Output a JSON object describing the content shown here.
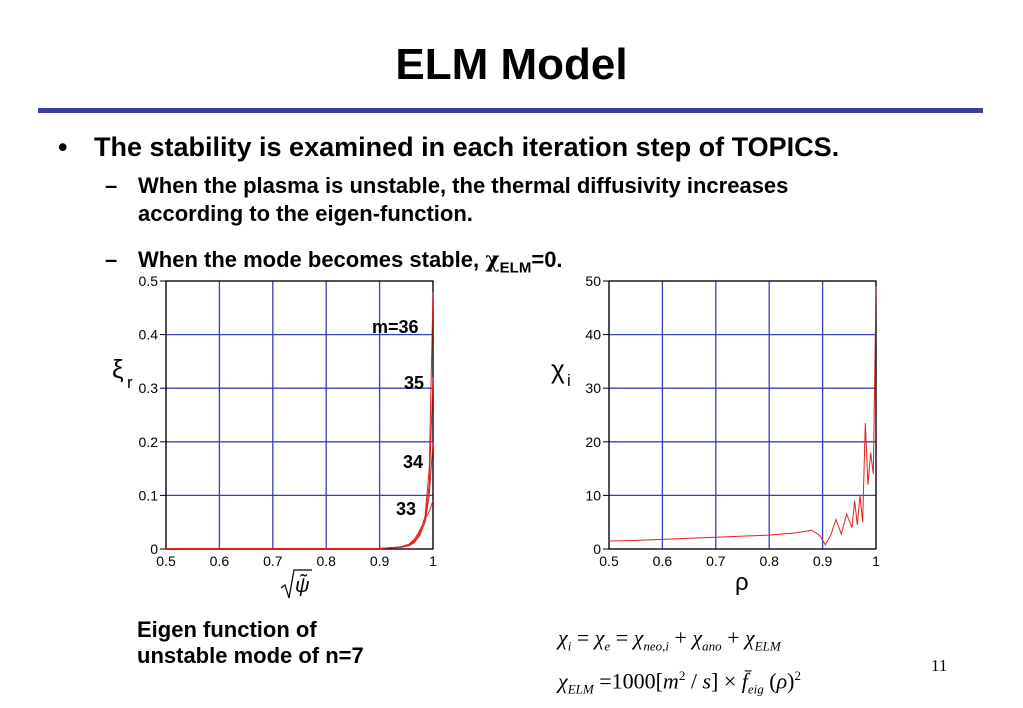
{
  "slide": {
    "title": "ELM Model",
    "bullet": "The stability is examined in each iteration step of TOPICS.",
    "sub1_line1": "When the plasma is unstable, the thermal diffusivity increases",
    "sub1_line2": "according to the eigen-function.",
    "sub2_text": "When the mode becomes stable, ",
    "sub2_chi": "χ",
    "sub2_sub": "ELM",
    "sub2_tail": "=0.",
    "caption_line1": "Eigen function of",
    "caption_line2": "unstable mode of n=7",
    "page_number": "11",
    "formula1": "χi = χe = χneo,i + χano + χELM",
    "formula2": "χELM = 1000[m2 / s] × f̄eig (ρ)2",
    "bullet_symbol": "•",
    "dash_symbol": "–"
  },
  "colors": {
    "rule": "#3b3f99",
    "grid": "#3b3fb5",
    "curve": "#e02020"
  },
  "chart_data": [
    {
      "type": "line",
      "title": "",
      "xlabel": "√ψ̃",
      "ylabel": "ξr",
      "xlim": [
        0.5,
        1
      ],
      "ylim": [
        0,
        0.5
      ],
      "x_ticks": [
        "0.5",
        "0.6",
        "0.7",
        "0.8",
        "0.9",
        "1"
      ],
      "y_ticks": [
        "0",
        "0.1",
        "0.2",
        "0.3",
        "0.4",
        "0.5"
      ],
      "grid": true,
      "annotations": [
        "m=36",
        "35",
        "34",
        "33"
      ],
      "series": [
        {
          "x": [
            0.5,
            0.9,
            0.94,
            0.955,
            0.965,
            0.975,
            0.985,
            0.993,
            1.0
          ],
          "values": [
            0.001,
            0.001,
            0.003,
            0.006,
            0.012,
            0.025,
            0.05,
            0.12,
            0.32
          ]
        },
        {
          "x": [
            0.5,
            0.9,
            0.94,
            0.955,
            0.965,
            0.975,
            0.985,
            0.993,
            1.0
          ],
          "values": [
            0.001,
            0.001,
            0.003,
            0.007,
            0.014,
            0.03,
            0.06,
            0.15,
            0.48
          ]
        },
        {
          "x": [
            0.5,
            0.9,
            0.94,
            0.955,
            0.965,
            0.975,
            0.985,
            0.993,
            1.0
          ],
          "values": [
            0.001,
            0.001,
            0.004,
            0.008,
            0.015,
            0.028,
            0.05,
            0.1,
            0.2
          ]
        },
        {
          "x": [
            0.5,
            0.9,
            0.94,
            0.955,
            0.965,
            0.975,
            0.985,
            0.993,
            1.0
          ],
          "values": [
            0.001,
            0.001,
            0.004,
            0.009,
            0.018,
            0.034,
            0.055,
            0.07,
            0.09
          ]
        }
      ]
    },
    {
      "type": "line",
      "title": "",
      "xlabel": "ρ",
      "ylabel": "χi",
      "xlim": [
        0.5,
        1
      ],
      "ylim": [
        0,
        50
      ],
      "x_ticks": [
        "0.5",
        "0.6",
        "0.7",
        "0.8",
        "0.9",
        "1"
      ],
      "y_ticks": [
        "0",
        "10",
        "20",
        "30",
        "40",
        "50"
      ],
      "grid": true,
      "series": [
        {
          "x": [
            0.5,
            0.55,
            0.6,
            0.65,
            0.7,
            0.75,
            0.8,
            0.85,
            0.88,
            0.895,
            0.905,
            0.915,
            0.925,
            0.935,
            0.945,
            0.955,
            0.96,
            0.965,
            0.97,
            0.975,
            0.98,
            0.985,
            0.99,
            0.995,
            1.0
          ],
          "values": [
            1.5,
            1.6,
            1.8,
            2.0,
            2.2,
            2.4,
            2.6,
            3.0,
            3.5,
            2.5,
            0.8,
            2.5,
            5.5,
            2.8,
            6.5,
            4.0,
            9.0,
            4.5,
            10.0,
            5.0,
            23.5,
            12.0,
            18.0,
            14.0,
            49.0
          ]
        }
      ]
    }
  ]
}
